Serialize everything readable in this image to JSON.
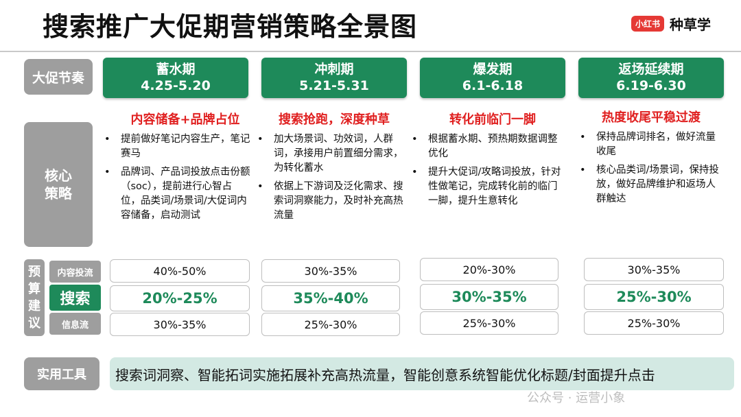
{
  "title": "搜索推广大促期营销策略全景图",
  "brand": {
    "logo": "小红书",
    "name": "种草学"
  },
  "row_labels": {
    "rhythm": "大促节奏",
    "strategy_l1": "核心",
    "strategy_l2": "策略",
    "budget_chars": [
      "预",
      "算",
      "建",
      "议"
    ],
    "content_flow": "内容投流",
    "search": "搜索",
    "info_flow": "信息流",
    "tools": "实用工具"
  },
  "phases": [
    {
      "name": "蓄水期",
      "dates": "4.25-5.20",
      "headline": "内容储备+品牌占位",
      "bullets": [
        "提前做好笔记内容生产，笔记赛马",
        "品牌词、产品词投放点击份额（soc），提前进行心智占位，品类词/场景词/大促词内容储备，启动测试"
      ],
      "budget": {
        "content": "40%-50%",
        "search": "20%-25%",
        "info": "30%-35%"
      }
    },
    {
      "name": "冲刺期",
      "dates": "5.21-5.31",
      "headline": "搜索抢跑，深度种草",
      "bullets": [
        "加大场景词、功效词，人群词，承接用户前置细分需求，为转化蓄水",
        "依据上下游词及泛化需求、搜索词洞察能力，及时补充高热流量"
      ],
      "budget": {
        "content": "30%-35%",
        "search": "35%-40%",
        "info": "25%-30%"
      }
    },
    {
      "name": "爆发期",
      "dates": "6.1-6.18",
      "headline": "转化前临门一脚",
      "bullets": [
        "根据蓄水期、预热期数据调整优化",
        "提升大促词/攻略词投放，针对性做笔记，完成转化前的临门一脚，提升生意转化"
      ],
      "budget": {
        "content": "20%-30%",
        "search": "30%-35%",
        "info": "25%-30%"
      }
    },
    {
      "name": "返场延续期",
      "dates": "6.19-6.30",
      "headline": "热度收尾平稳过渡",
      "bullets": [
        "保持品牌词排名，做好流量收尾",
        "核心品类词/场景词，保持投放，做好品牌维护和返场人群触达"
      ],
      "budget": {
        "content": "30%-35%",
        "search": "25%-30%",
        "info": "25%-30%"
      }
    }
  ],
  "bullet_glyph": "•",
  "tools_text": "搜索词洞察、智能拓词实施拓展补充高热流量，智能创意系统智能优化标题/封面提升点击",
  "watermark": "公众号 · 运营小象",
  "colors": {
    "green": "#1e8a5a",
    "red": "#e02020",
    "grey": "#9e9e9e",
    "tool_bg": "#d3e9e3"
  }
}
